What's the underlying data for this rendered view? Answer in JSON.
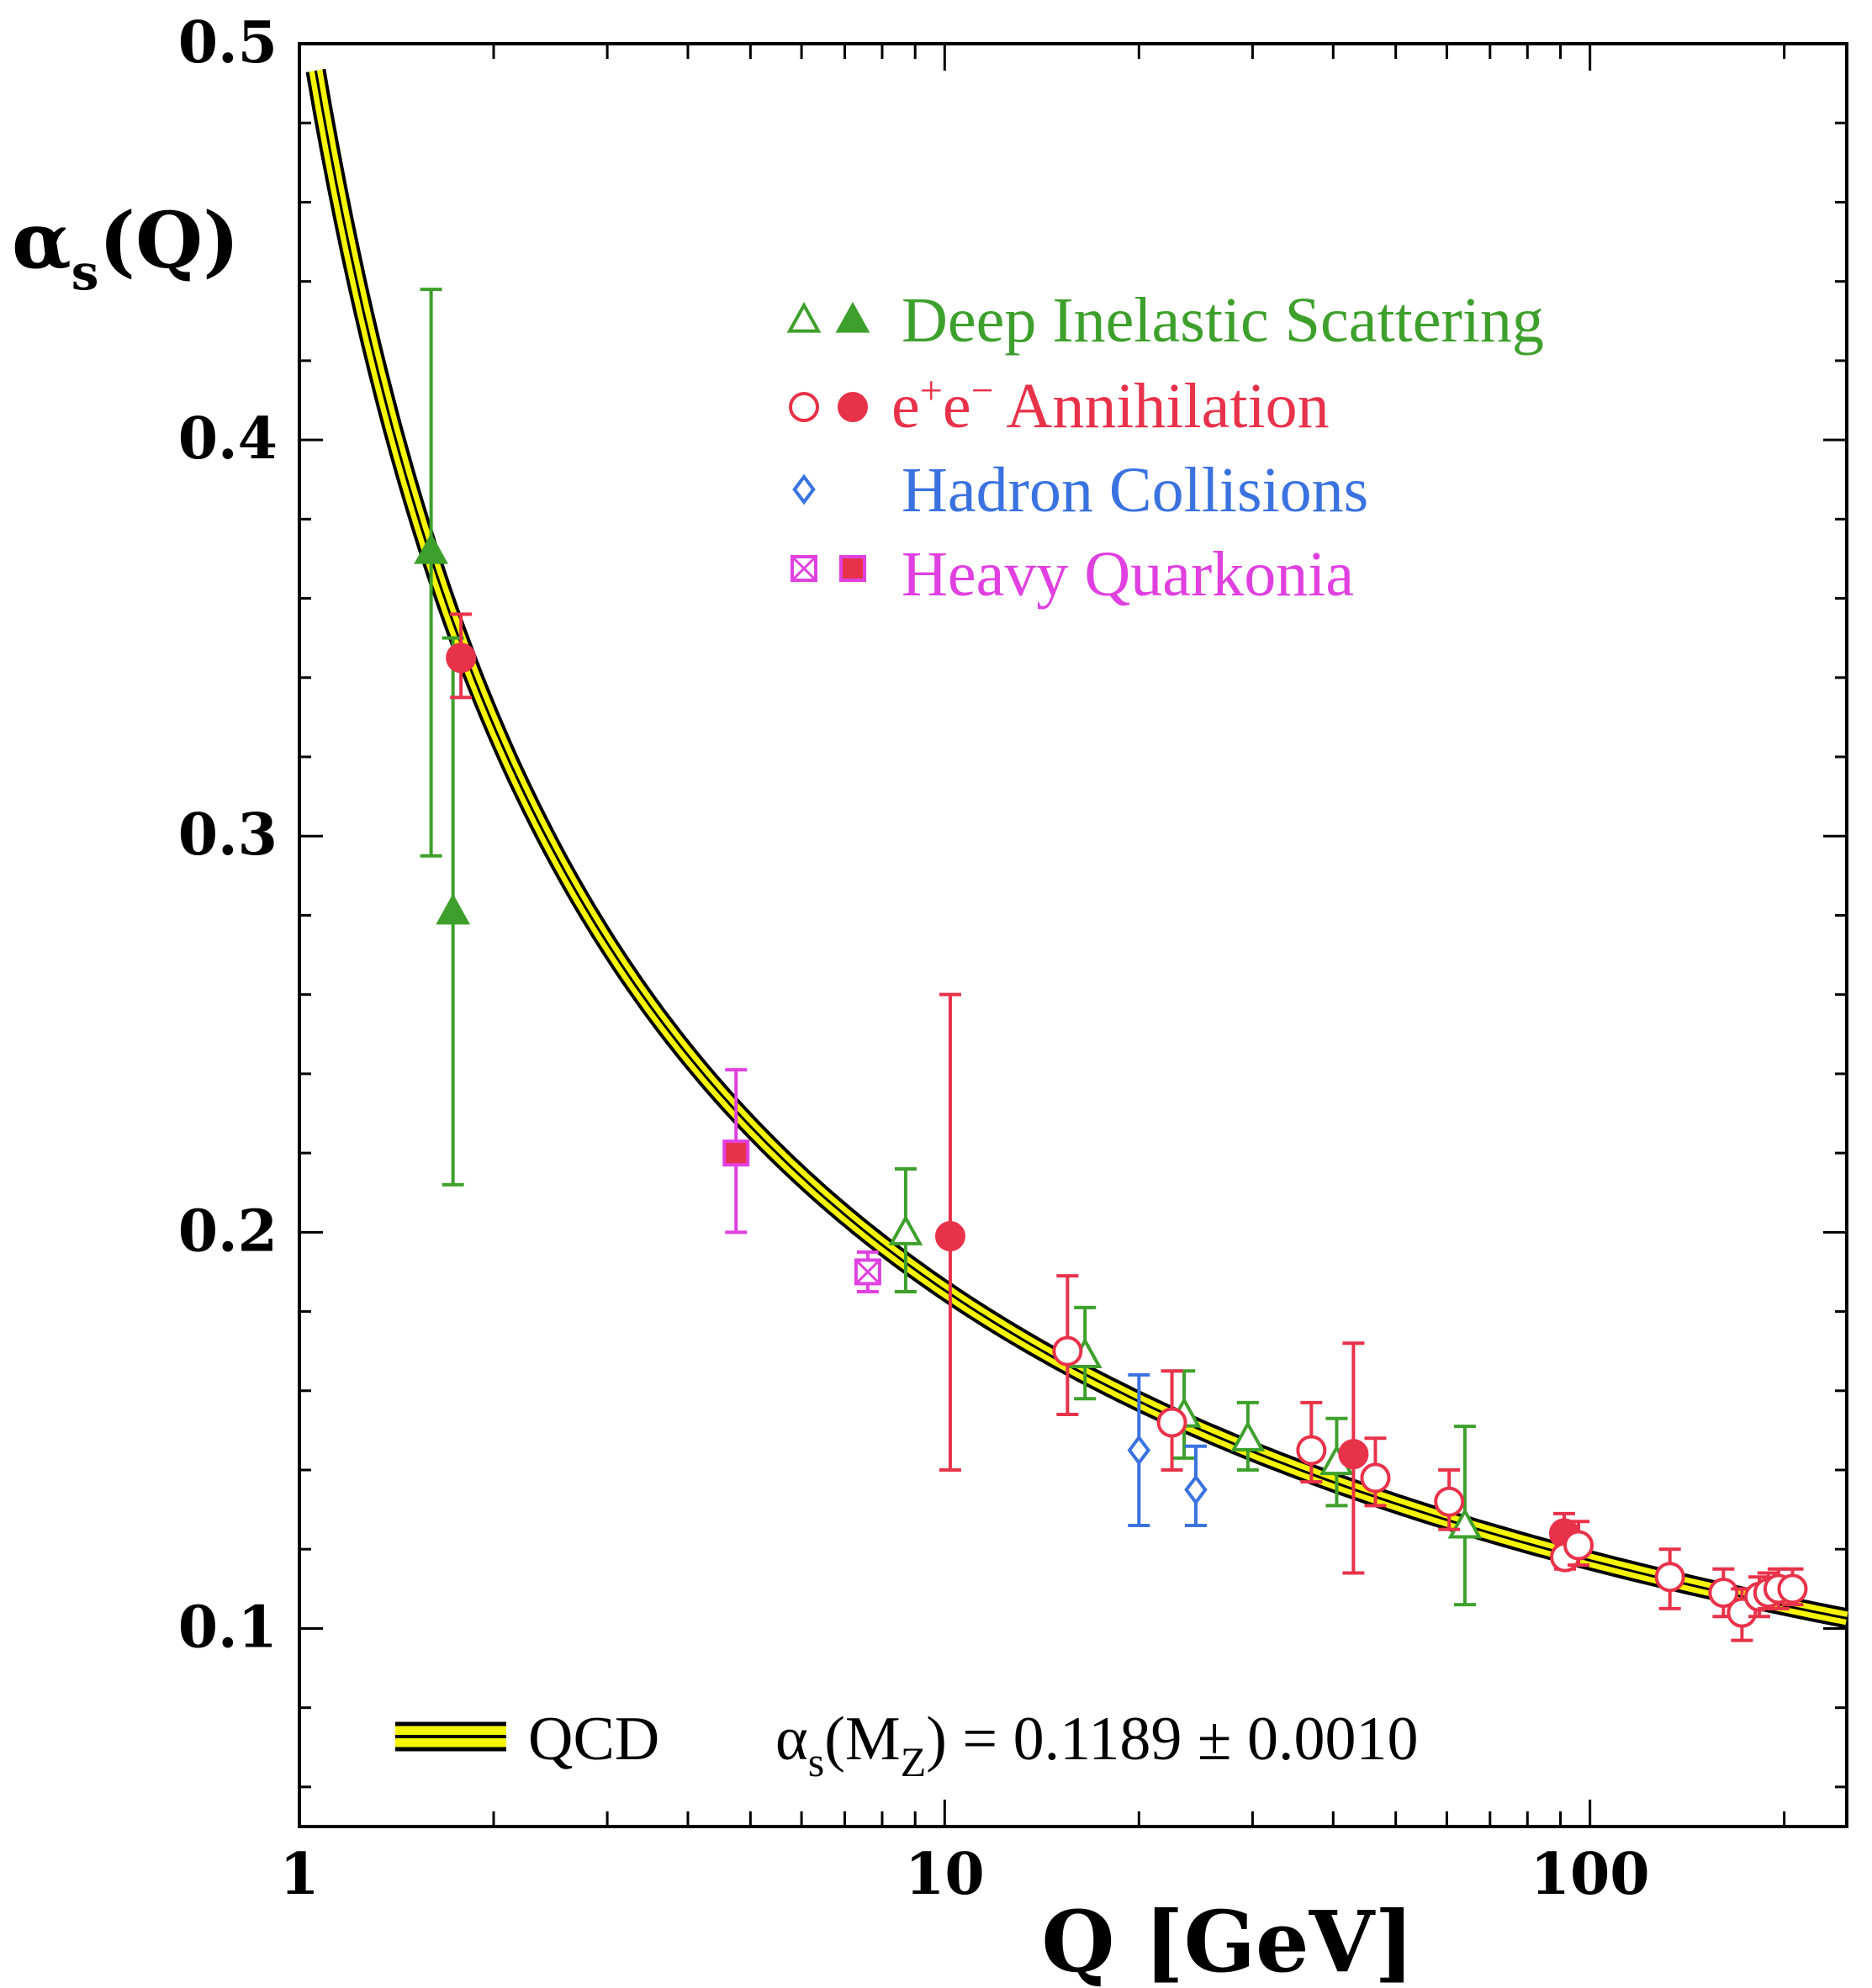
{
  "chart_data": {
    "type": "scatter",
    "title": "",
    "ylabel": {
      "alpha": "α",
      "sub": "s",
      "rest": "(Q)"
    },
    "xlabel": "Q [GeV]",
    "xscale": "log",
    "xlim": [
      1,
      250
    ],
    "ylim": [
      0.05,
      0.5
    ],
    "xticks": [
      {
        "value": 1,
        "label": "1"
      },
      {
        "value": 10,
        "label": "10"
      },
      {
        "value": 100,
        "label": "100"
      }
    ],
    "yticks": [
      {
        "value": 0.1,
        "label": "0.1"
      },
      {
        "value": 0.2,
        "label": "0.2"
      },
      {
        "value": 0.3,
        "label": "0.3"
      },
      {
        "value": 0.4,
        "label": "0.4"
      },
      {
        "value": 0.5,
        "label": "0.5"
      }
    ],
    "curve": {
      "name": "QCD",
      "alpha_s_MZ": 0.1189,
      "MZ": 91.19,
      "band_color": "#f5f500",
      "line_color": "#000000"
    },
    "colors": {
      "dis": "#3ea02c",
      "ee": "#e8324a",
      "hadron": "#3a72e0",
      "quarkonia": "#e040e0"
    },
    "series": [
      {
        "name": "Deep Inelastic Scattering",
        "color_key": "dis",
        "points": [
          {
            "q": 1.6,
            "y": 0.372,
            "lo": 0.295,
            "hi": 0.438,
            "marker": "triangle",
            "filled": true
          },
          {
            "q": 1.73,
            "y": 0.281,
            "lo": 0.212,
            "hi": 0.35,
            "marker": "triangle",
            "filled": true
          },
          {
            "q": 8.7,
            "y": 0.2,
            "lo": 0.185,
            "hi": 0.216,
            "marker": "triangle",
            "filled": false
          },
          {
            "q": 16.5,
            "y": 0.169,
            "lo": 0.158,
            "hi": 0.181,
            "marker": "triangle",
            "filled": false
          },
          {
            "q": 23.5,
            "y": 0.154,
            "lo": 0.143,
            "hi": 0.165,
            "marker": "triangle",
            "filled": false
          },
          {
            "q": 29.5,
            "y": 0.148,
            "lo": 0.14,
            "hi": 0.157,
            "marker": "triangle",
            "filled": false
          },
          {
            "q": 40.5,
            "y": 0.142,
            "lo": 0.131,
            "hi": 0.153,
            "marker": "triangle",
            "filled": false
          },
          {
            "q": 64,
            "y": 0.126,
            "lo": 0.106,
            "hi": 0.151,
            "marker": "triangle",
            "filled": false
          }
        ]
      },
      {
        "name": "e+e- Annihilation",
        "color_key": "ee",
        "points": [
          {
            "q": 1.78,
            "y": 0.345,
            "lo": 0.335,
            "hi": 0.356,
            "marker": "circle",
            "filled": true
          },
          {
            "q": 10.2,
            "y": 0.199,
            "lo": 0.14,
            "hi": 0.26,
            "marker": "circle",
            "filled": true
          },
          {
            "q": 15.5,
            "y": 0.17,
            "lo": 0.154,
            "hi": 0.189,
            "marker": "circle",
            "filled": false
          },
          {
            "q": 22.5,
            "y": 0.152,
            "lo": 0.14,
            "hi": 0.165,
            "marker": "circle",
            "filled": false
          },
          {
            "q": 37,
            "y": 0.145,
            "lo": 0.137,
            "hi": 0.157,
            "marker": "circle",
            "filled": false
          },
          {
            "q": 43,
            "y": 0.144,
            "lo": 0.114,
            "hi": 0.172,
            "marker": "circle",
            "filled": true
          },
          {
            "q": 46.5,
            "y": 0.138,
            "lo": 0.131,
            "hi": 0.148,
            "marker": "circle",
            "filled": false
          },
          {
            "q": 60.5,
            "y": 0.132,
            "lo": 0.125,
            "hi": 0.14,
            "marker": "circle",
            "filled": false
          },
          {
            "q": 91.2,
            "y": 0.124,
            "lo": 0.12,
            "hi": 0.129,
            "marker": "circle",
            "filled": true
          },
          {
            "q": 91.5,
            "y": 0.118,
            "lo": 0.115,
            "hi": 0.122,
            "marker": "circle",
            "filled": false
          },
          {
            "q": 96,
            "y": 0.121,
            "lo": 0.116,
            "hi": 0.127,
            "marker": "circle",
            "filled": false
          },
          {
            "q": 133,
            "y": 0.113,
            "lo": 0.105,
            "hi": 0.12,
            "marker": "circle",
            "filled": false
          },
          {
            "q": 161,
            "y": 0.109,
            "lo": 0.103,
            "hi": 0.115,
            "marker": "circle",
            "filled": false
          },
          {
            "q": 172,
            "y": 0.104,
            "lo": 0.097,
            "hi": 0.11,
            "marker": "circle",
            "filled": false
          },
          {
            "q": 183,
            "y": 0.108,
            "lo": 0.103,
            "hi": 0.113,
            "marker": "circle",
            "filled": false
          },
          {
            "q": 189,
            "y": 0.109,
            "lo": 0.105,
            "hi": 0.114,
            "marker": "circle",
            "filled": false
          },
          {
            "q": 196,
            "y": 0.11,
            "lo": 0.105,
            "hi": 0.115,
            "marker": "circle",
            "filled": false
          },
          {
            "q": 206,
            "y": 0.11,
            "lo": 0.106,
            "hi": 0.115,
            "marker": "circle",
            "filled": false
          }
        ]
      },
      {
        "name": "Hadron Collisions",
        "color_key": "hadron",
        "points": [
          {
            "q": 20,
            "y": 0.145,
            "lo": 0.126,
            "hi": 0.164,
            "marker": "diamond",
            "filled": false
          },
          {
            "q": 24.5,
            "y": 0.135,
            "lo": 0.126,
            "hi": 0.146,
            "marker": "diamond",
            "filled": false
          }
        ]
      },
      {
        "name": "Heavy Quarkonia",
        "color_key": "quarkonia",
        "points": [
          {
            "q": 4.75,
            "y": 0.22,
            "lo": 0.2,
            "hi": 0.241,
            "marker": "square",
            "filled": true
          },
          {
            "q": 7.6,
            "y": 0.19,
            "lo": 0.185,
            "hi": 0.195,
            "marker": "square",
            "filled": false
          }
        ]
      }
    ],
    "legend": {
      "position": "top-right",
      "entries": [
        {
          "label": "Deep Inelastic Scattering",
          "color_key": "dis",
          "symbols": [
            "triangle-open",
            "triangle-filled"
          ]
        },
        {
          "label_html_parts": [
            "e",
            "+",
            "e",
            "−",
            " Annihilation"
          ],
          "label": "e+e− Annihilation",
          "color_key": "ee",
          "symbols": [
            "circle-open",
            "circle-filled"
          ]
        },
        {
          "label": "Hadron Collisions",
          "color_key": "hadron",
          "symbols": [
            "diamond-open"
          ]
        },
        {
          "label": "Heavy Quarkonia",
          "color_key": "quarkonia",
          "symbols": [
            "square-open",
            "square-filled"
          ]
        }
      ]
    },
    "annotation": {
      "qcd_label": "QCD",
      "formula_alpha": "α",
      "formula_sub_s": "s",
      "formula_open": "(M",
      "formula_sub_z": "Z",
      "formula_rest": ") = 0.1189 ± 0.0010"
    }
  }
}
